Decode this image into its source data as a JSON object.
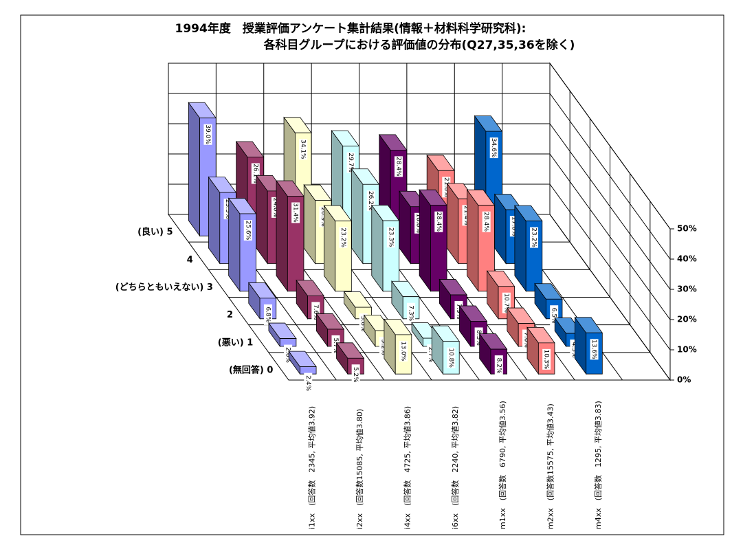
{
  "chart_data": {
    "type": "bar3d",
    "title": "1994年度　授業評価アンケート集計結果(情報＋材料科学研究科):",
    "subtitle": "各科目グループにおける評価値の分布(Q27,35,36を除く)",
    "categories": [
      "(良い) 5",
      "4",
      "(どちらともいえない) 3",
      "2",
      "(悪い) 1",
      "(無回答) 0"
    ],
    "series": [
      {
        "name": "i1xx　(回答数　2345, 平均値3.92)",
        "color": "#9999ff",
        "values": [
          39.0,
          23.5,
          25.6,
          6.8,
          2.6,
          2.4
        ],
        "value_labels": [
          "39.0%",
          "23.5%",
          "25.6%",
          "6.8%",
          "2.6%",
          "2.4%"
        ]
      },
      {
        "name": "i2xx　(回答数15085, 平均値3.80)",
        "color": "#993366",
        "values": [
          26.1,
          24.0,
          31.4,
          7.6,
          5.7,
          5.2
        ],
        "value_labels": [
          "26.1%",
          "24.0%",
          "31.4%",
          "7.6%",
          "5.7%",
          "5.2%"
        ]
      },
      {
        "name": "i4xx　(回答数　4725, 平均値3.86)",
        "color": "#ffffcc",
        "values": [
          34.1,
          20.9,
          23.2,
          3.8,
          5.2,
          13.0
        ],
        "value_labels": [
          "34.1%",
          "20.9%",
          "23.2%",
          "3.8%",
          "5.2%",
          "13.0%"
        ]
      },
      {
        "name": "i6xx　(回答数　2240, 平均値3.82)",
        "color": "#ccffff",
        "values": [
          29.7,
          26.2,
          23.3,
          7.3,
          2.7,
          10.8
        ],
        "value_labels": [
          "29.7%",
          "26.2%",
          "23.3%",
          "7.3%",
          "2.7%",
          "10.8%"
        ]
      },
      {
        "name": "m1xx　(回答数　6790, 平均値3.56)",
        "color": "#660066",
        "values": [
          28.4,
          18.8,
          28.4,
          7.9,
          8.3,
          8.2
        ],
        "value_labels": [
          "28.4%",
          "18.8%",
          "28.4%",
          "7.9%",
          "8.3%",
          "8.2%"
        ]
      },
      {
        "name": "m2xx　(回答数15575, 平均値3.43)",
        "color": "#ff8080",
        "values": [
          21.6,
          21.4,
          28.4,
          10.7,
          7.6,
          10.3
        ],
        "value_labels": [
          "21.6%",
          "21.4%",
          "28.4%",
          "10.7%",
          "7.6%",
          "10.3%"
        ]
      },
      {
        "name": "m4xx　(回答数　1295, 平均値3.83)",
        "color": "#0066cc",
        "values": [
          34.6,
          17.8,
          23.2,
          6.5,
          4.3,
          13.6
        ],
        "value_labels": [
          "34.6%",
          "17.8%",
          "23.2%",
          "6.5%",
          "4.3%",
          "13.6%"
        ]
      }
    ],
    "ylim": [
      0,
      50
    ],
    "yticks": [
      {
        "value": 0,
        "label": "0%"
      },
      {
        "value": 10,
        "label": "10%"
      },
      {
        "value": 20,
        "label": "20%"
      },
      {
        "value": 30,
        "label": "30%"
      },
      {
        "value": 40,
        "label": "40%"
      },
      {
        "value": 50,
        "label": "50%"
      }
    ],
    "grid": true
  }
}
